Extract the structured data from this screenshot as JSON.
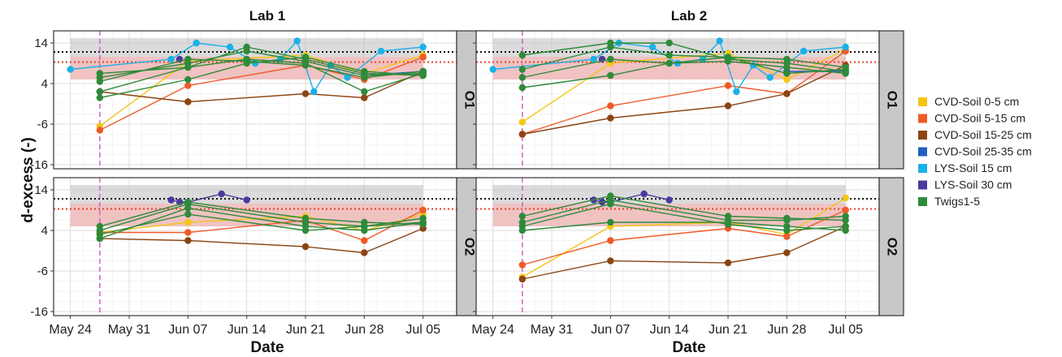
{
  "figure": {
    "ylabel": "d-excess (-)",
    "xlabel": "Date",
    "columns": [
      "Lab 1",
      "Lab 2"
    ],
    "rows": [
      "O1",
      "O2"
    ]
  },
  "axes": {
    "x_ticks": [
      "May 24",
      "May 31",
      "Jun 07",
      "Jun 14",
      "Jun 21",
      "Jun 28",
      "Jul 05"
    ],
    "x_tick_days": [
      0,
      7,
      14,
      21,
      28,
      35,
      42
    ],
    "y_ticks": [
      14,
      4,
      -6,
      -16
    ],
    "ylim": [
      -17,
      17
    ],
    "xlim_days": [
      -2,
      46
    ],
    "grid": true
  },
  "reference": {
    "vline_day": 3.5,
    "vline_color": "#cc66bb",
    "black_dotted_y": 11.8,
    "red_dotted_y": 9.3,
    "grey_band": [
      5,
      15.2
    ],
    "pink_band": [
      5,
      10.6
    ],
    "band_days": [
      0,
      42
    ]
  },
  "legend": {
    "position": "right",
    "items": [
      {
        "label": "CVD-Soil 0-5 cm",
        "color": "#f5c518"
      },
      {
        "label": "CVD-Soil 5-15 cm",
        "color": "#f05a28"
      },
      {
        "label": "CVD-Soil 15-25 cm",
        "color": "#8b4513"
      },
      {
        "label": "CVD-Soil 25-35 cm",
        "color": "#1f5fbf"
      },
      {
        "label": "LYS-Soil 15 cm",
        "color": "#1ab0e8"
      },
      {
        "label": "LYS-Soil 30 cm",
        "color": "#4b3a9e"
      },
      {
        "label": "Twigs1-5",
        "color": "#2e8b3a"
      }
    ]
  },
  "chart_data": [
    {
      "type": "line",
      "title": "Lab 1 / O1",
      "series": [
        {
          "name": "CVD-Soil 0-5 cm",
          "x": [
            3.5,
            14,
            28,
            35,
            42
          ],
          "y": [
            -6.5,
            9.5,
            11,
            6.5,
            11
          ]
        },
        {
          "name": "CVD-Soil 5-15 cm",
          "x": [
            3.5,
            14,
            28,
            35,
            42
          ],
          "y": [
            -7.5,
            3.5,
            8.5,
            5,
            10.5
          ]
        },
        {
          "name": "CVD-Soil 15-25 cm",
          "x": [
            3.5,
            14,
            28,
            35,
            42
          ],
          "y": [
            2,
            -0.5,
            1.5,
            0.5,
            7
          ]
        },
        {
          "name": "CVD-Soil 25-35 cm",
          "x": [
            35,
            42
          ],
          "y": [
            6,
            7
          ]
        },
        {
          "name": "LYS-Soil 15 cm",
          "x": [
            0,
            12,
            15,
            19,
            22,
            25,
            27,
            29,
            31,
            33,
            37,
            42
          ],
          "y": [
            7.5,
            10,
            14,
            13,
            9,
            10,
            14.5,
            2,
            8.5,
            5.5,
            12,
            13
          ]
        },
        {
          "name": "LYS-Soil 30 cm",
          "x": [
            13
          ],
          "y": [
            10
          ]
        },
        {
          "name": "Twigs1-5",
          "x": [
            3.5,
            14,
            21,
            28,
            35,
            42
          ],
          "y": [
            6.5,
            8,
            13,
            10,
            6.5,
            6
          ]
        },
        {
          "name": "Twigs1-5",
          "x": [
            3.5,
            14,
            21,
            28,
            35,
            42
          ],
          "y": [
            5.5,
            9,
            12,
            9.5,
            6,
            6.5
          ]
        },
        {
          "name": "Twigs1-5",
          "x": [
            3.5,
            14,
            21,
            28,
            35,
            42
          ],
          "y": [
            4.5,
            10,
            9.5,
            8.5,
            5.5,
            7
          ]
        },
        {
          "name": "Twigs1-5",
          "x": [
            3.5,
            14,
            21,
            28,
            35,
            42
          ],
          "y": [
            2,
            8,
            10,
            9,
            2,
            6.5
          ]
        },
        {
          "name": "Twigs1-5",
          "x": [
            3.5,
            14,
            21,
            28,
            35,
            42
          ],
          "y": [
            0.5,
            5,
            9,
            10.5,
            7,
            6
          ]
        }
      ]
    },
    {
      "type": "line",
      "title": "Lab 2 / O1",
      "series": [
        {
          "name": "CVD-Soil 0-5 cm",
          "x": [
            3.5,
            14,
            28,
            35,
            42
          ],
          "y": [
            -5.5,
            9,
            11.5,
            5,
            12.5
          ]
        },
        {
          "name": "CVD-Soil 5-15 cm",
          "x": [
            3.5,
            14,
            28,
            35,
            42
          ],
          "y": [
            -8.5,
            -1.5,
            3.5,
            1.5,
            12
          ]
        },
        {
          "name": "CVD-Soil 15-25 cm",
          "x": [
            3.5,
            14,
            28,
            35,
            42
          ],
          "y": [
            -8.5,
            -4.5,
            -1.5,
            1.5,
            8.5
          ]
        },
        {
          "name": "CVD-Soil 25-35 cm",
          "x": [
            35,
            42
          ],
          "y": [
            7,
            7
          ]
        },
        {
          "name": "LYS-Soil 15 cm",
          "x": [
            0,
            12,
            15,
            19,
            22,
            25,
            27,
            29,
            31,
            33,
            37,
            42
          ],
          "y": [
            7.5,
            10,
            14,
            13,
            9,
            10,
            14.5,
            2,
            8.5,
            5.5,
            12,
            13
          ]
        },
        {
          "name": "LYS-Soil 30 cm",
          "x": [
            13
          ],
          "y": [
            10
          ]
        },
        {
          "name": "Twigs1-5",
          "x": [
            3.5,
            14,
            21,
            28,
            35,
            42
          ],
          "y": [
            11,
            14,
            14,
            10,
            9,
            7
          ]
        },
        {
          "name": "Twigs1-5",
          "x": [
            3.5,
            14,
            21,
            28,
            35,
            42
          ],
          "y": [
            7.5,
            13,
            11,
            10.5,
            10,
            8
          ]
        },
        {
          "name": "Twigs1-5",
          "x": [
            3.5,
            14,
            21,
            28,
            35,
            42
          ],
          "y": [
            5.5,
            10,
            9,
            9.5,
            8,
            6.5
          ]
        },
        {
          "name": "Twigs1-5",
          "x": [
            3.5,
            14,
            21,
            28,
            35,
            42
          ],
          "y": [
            3,
            6,
            9,
            10.5,
            6.5,
            7.5
          ]
        }
      ]
    },
    {
      "type": "line",
      "title": "Lab 1 / O2",
      "series": [
        {
          "name": "CVD-Soil 0-5 cm",
          "x": [
            3.5,
            14,
            28,
            35,
            42
          ],
          "y": [
            3.5,
            6,
            7.5,
            4,
            8
          ]
        },
        {
          "name": "CVD-Soil 5-15 cm",
          "x": [
            3.5,
            14,
            28,
            35,
            42
          ],
          "y": [
            3.5,
            3.5,
            6.5,
            1.5,
            9
          ]
        },
        {
          "name": "CVD-Soil 15-25 cm",
          "x": [
            3.5,
            14,
            28,
            35,
            42
          ],
          "y": [
            2,
            1.5,
            0,
            -1.5,
            4.5
          ]
        },
        {
          "name": "LYS-Soil 30 cm",
          "x": [
            12,
            13,
            14,
            18,
            21
          ],
          "y": [
            11.5,
            11,
            11,
            13,
            11.5
          ]
        },
        {
          "name": "Twigs1-5",
          "x": [
            3.5,
            14,
            28,
            35,
            42
          ],
          "y": [
            5,
            11,
            7,
            6,
            5.5
          ]
        },
        {
          "name": "Twigs1-5",
          "x": [
            3.5,
            14,
            28,
            35,
            42
          ],
          "y": [
            4,
            10.5,
            6,
            5,
            6
          ]
        },
        {
          "name": "Twigs1-5",
          "x": [
            3.5,
            14,
            28,
            35,
            42
          ],
          "y": [
            3,
            8,
            4,
            5,
            7
          ]
        },
        {
          "name": "Twigs1-5",
          "x": [
            3.5,
            14,
            28,
            35,
            42
          ],
          "y": [
            2,
            9.5,
            5,
            4,
            6
          ]
        }
      ]
    },
    {
      "type": "line",
      "title": "Lab 2 / O2",
      "series": [
        {
          "name": "CVD-Soil 0-5 cm",
          "x": [
            3.5,
            14,
            28,
            35,
            42
          ],
          "y": [
            -7.5,
            5,
            6,
            3,
            12
          ]
        },
        {
          "name": "CVD-Soil 5-15 cm",
          "x": [
            3.5,
            14,
            28,
            35,
            42
          ],
          "y": [
            -4.5,
            1.5,
            4.5,
            2.5,
            9
          ]
        },
        {
          "name": "CVD-Soil 15-25 cm",
          "x": [
            3.5,
            14,
            28,
            35,
            42
          ],
          "y": [
            -8,
            -3.5,
            -4,
            -1.5,
            5
          ]
        },
        {
          "name": "LYS-Soil 30 cm",
          "x": [
            12,
            13,
            14,
            18,
            21
          ],
          "y": [
            11.5,
            11,
            11,
            13,
            11.5
          ]
        },
        {
          "name": "Twigs1-5",
          "x": [
            3.5,
            14,
            28,
            35,
            42
          ],
          "y": [
            7.5,
            12.5,
            7.5,
            7,
            6.5
          ]
        },
        {
          "name": "Twigs1-5",
          "x": [
            3.5,
            14,
            28,
            35,
            42
          ],
          "y": [
            6,
            11.5,
            6.5,
            6.5,
            7.5
          ]
        },
        {
          "name": "Twigs1-5",
          "x": [
            3.5,
            14,
            28,
            35,
            42
          ],
          "y": [
            5,
            10.5,
            5.5,
            4,
            5
          ]
        },
        {
          "name": "Twigs1-5",
          "x": [
            3.5,
            14,
            28,
            35,
            42
          ],
          "y": [
            4,
            6,
            6,
            5,
            4
          ]
        }
      ]
    }
  ]
}
